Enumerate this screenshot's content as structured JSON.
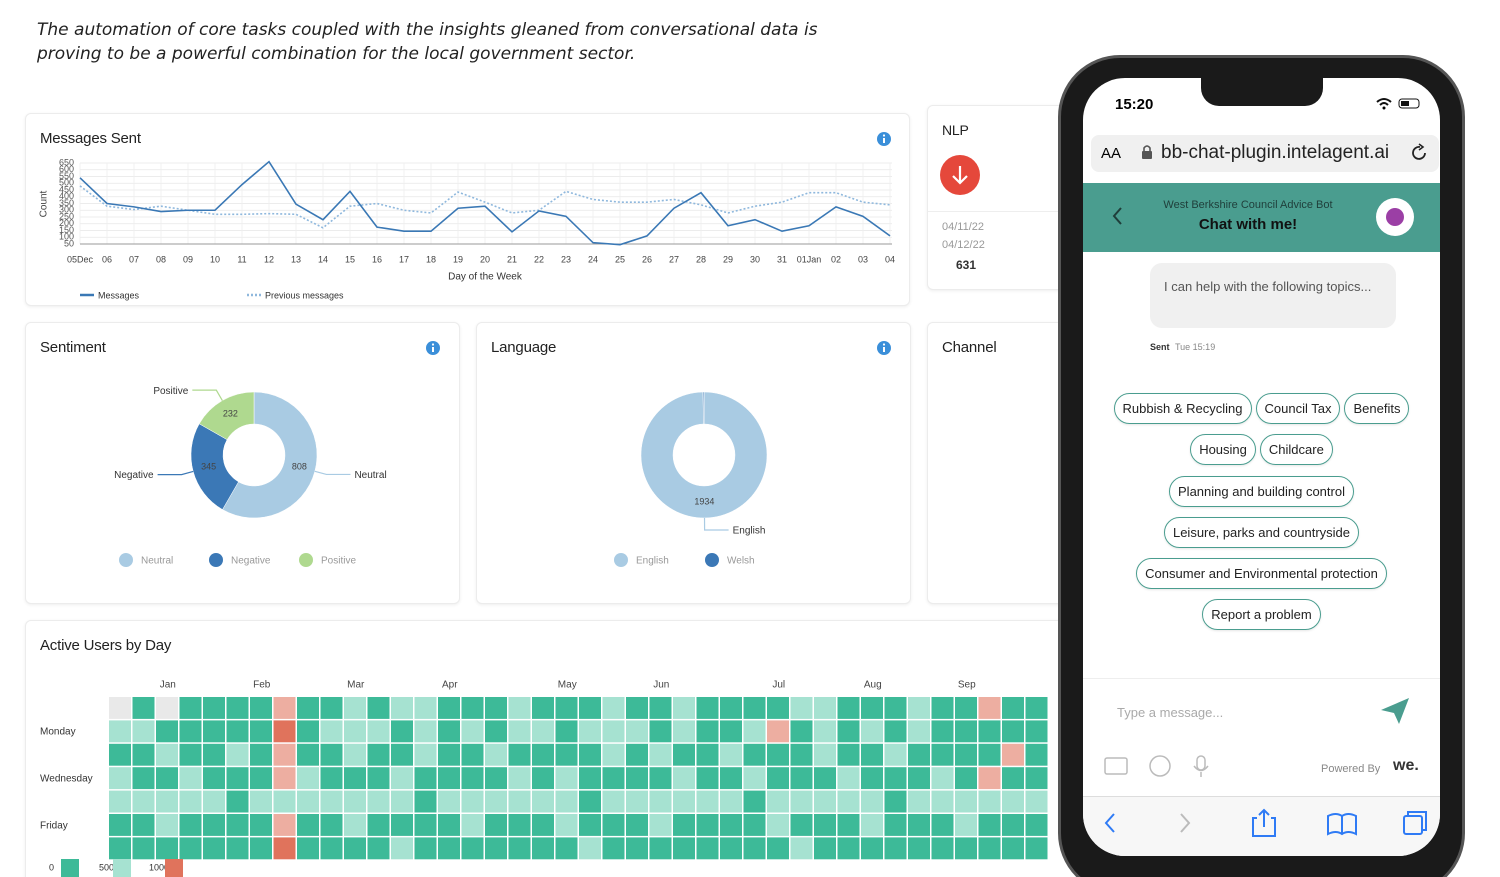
{
  "caption": "The automation of core tasks coupled with the insights gleaned from conversational data is proving to be a powerful combination for the local government sector.",
  "messages_chart": {
    "type": "line",
    "title": "Messages Sent",
    "ylabel": "Count",
    "xlabel": "Day of the Week",
    "categories": [
      "05Dec",
      "06",
      "07",
      "08",
      "09",
      "10",
      "11",
      "12",
      "13",
      "14",
      "15",
      "16",
      "17",
      "18",
      "19",
      "20",
      "21",
      "22",
      "23",
      "24",
      "25",
      "26",
      "27",
      "28",
      "29",
      "30",
      "31",
      "01Jan",
      "02",
      "03",
      "04"
    ],
    "series": [
      {
        "name": "Messages",
        "color": "#3a78b5",
        "style": "solid",
        "values": [
          540,
          350,
          325,
          290,
          300,
          300,
          490,
          660,
          345,
          230,
          440,
          175,
          145,
          145,
          315,
          330,
          140,
          295,
          255,
          60,
          45,
          110,
          315,
          430,
          185,
          230,
          145,
          185,
          325,
          255,
          110
        ]
      },
      {
        "name": "Previous messages",
        "color": "#8fb8dd",
        "style": "dotted",
        "values": [
          480,
          330,
          305,
          330,
          300,
          270,
          270,
          275,
          270,
          170,
          330,
          350,
          300,
          280,
          435,
          360,
          280,
          300,
          440,
          380,
          360,
          360,
          380,
          340,
          280,
          330,
          360,
          430,
          430,
          360,
          340
        ]
      }
    ],
    "ylim": [
      50,
      650
    ],
    "yticks": [
      50,
      100,
      150,
      200,
      250,
      300,
      350,
      400,
      450,
      500,
      550,
      600,
      650
    ],
    "grid": true
  },
  "nlp": {
    "title": "NLP",
    "dates": [
      "04/11/22",
      "04/12/22"
    ],
    "count": "631"
  },
  "sentiment": {
    "type": "donut",
    "title": "Sentiment",
    "categories": [
      "Neutral",
      "Negative",
      "Positive"
    ],
    "values": [
      808,
      345,
      232
    ],
    "colors": [
      "#a9cbe3",
      "#3b78b6",
      "#afd98f"
    ]
  },
  "language": {
    "type": "donut",
    "title": "Language",
    "categories": [
      "English",
      "Welsh"
    ],
    "values": [
      1934,
      5
    ],
    "colors": [
      "#a9cbe3",
      "#3b78b6"
    ]
  },
  "channel": {
    "title": "Channel"
  },
  "active_users": {
    "type": "heatmap",
    "title": "Active Users by Day",
    "columns": [
      null,
      null,
      "Jan",
      null,
      null,
      null,
      "Feb",
      null,
      null,
      null,
      "Mar",
      null,
      null,
      null,
      "Apr",
      null,
      null,
      null,
      null,
      "May",
      null,
      null,
      null,
      "Jun",
      null,
      null,
      null,
      null,
      "Jul",
      null,
      null,
      null,
      "Aug",
      null,
      null,
      null,
      "Sep",
      null,
      null,
      null
    ],
    "rows": [
      null,
      "Monday",
      null,
      "Wednesday",
      null,
      "Friday",
      null
    ],
    "values": [
      [
        null,
        300,
        null,
        300,
        300,
        300,
        300,
        1050,
        300,
        300,
        700,
        300,
        700,
        700,
        300,
        300,
        300,
        700,
        300,
        300,
        300,
        700,
        300,
        300,
        700,
        300,
        300,
        300,
        300,
        700,
        700,
        300,
        300,
        300,
        700,
        300,
        300,
        1050,
        300,
        300
      ],
      [
        700,
        700,
        300,
        300,
        300,
        300,
        300,
        1300,
        300,
        700,
        700,
        700,
        300,
        700,
        300,
        700,
        300,
        700,
        700,
        300,
        700,
        700,
        700,
        300,
        700,
        300,
        300,
        700,
        1050,
        300,
        700,
        300,
        700,
        300,
        700,
        300,
        300,
        300,
        300,
        300
      ],
      [
        300,
        300,
        700,
        300,
        300,
        700,
        300,
        1050,
        300,
        300,
        700,
        300,
        300,
        700,
        300,
        300,
        700,
        300,
        300,
        300,
        300,
        700,
        300,
        700,
        300,
        300,
        700,
        300,
        300,
        300,
        700,
        300,
        300,
        700,
        300,
        300,
        300,
        300,
        1050,
        300
      ],
      [
        700,
        300,
        300,
        700,
        300,
        300,
        300,
        1050,
        700,
        300,
        300,
        300,
        700,
        300,
        300,
        300,
        300,
        700,
        300,
        700,
        300,
        300,
        300,
        300,
        700,
        300,
        300,
        700,
        300,
        300,
        300,
        700,
        300,
        300,
        300,
        700,
        300,
        1050,
        300,
        300
      ],
      [
        700,
        700,
        700,
        700,
        700,
        300,
        700,
        700,
        700,
        700,
        700,
        700,
        700,
        300,
        700,
        700,
        700,
        700,
        700,
        700,
        300,
        700,
        700,
        700,
        700,
        700,
        700,
        300,
        700,
        700,
        700,
        700,
        700,
        300,
        700,
        700,
        700,
        700,
        700,
        700
      ],
      [
        300,
        300,
        700,
        300,
        300,
        300,
        300,
        1050,
        300,
        300,
        700,
        300,
        300,
        300,
        300,
        700,
        300,
        300,
        300,
        700,
        300,
        300,
        300,
        700,
        300,
        300,
        300,
        300,
        700,
        300,
        300,
        300,
        700,
        300,
        300,
        300,
        700,
        300,
        300,
        300
      ],
      [
        300,
        300,
        300,
        300,
        300,
        300,
        300,
        1300,
        300,
        300,
        300,
        300,
        700,
        300,
        300,
        300,
        300,
        300,
        300,
        300,
        700,
        300,
        300,
        300,
        300,
        300,
        300,
        300,
        300,
        700,
        300,
        300,
        300,
        300,
        300,
        300,
        300,
        300,
        300,
        300
      ]
    ],
    "legend": [
      {
        "value": 0,
        "color": "#3dba98"
      },
      {
        "value": 500,
        "color": "#a6e2d1"
      },
      {
        "value": 1000,
        "color": "#e0735c"
      }
    ],
    "null_color": "#e9e9e9"
  },
  "phone": {
    "time": "15:20",
    "text_size": "AA",
    "url": "bb-chat-plugin.intelagent.ai",
    "bot_name": "West Berkshire Council Advice Bot",
    "header": "Chat with me!",
    "message": "I can help with the following topics...",
    "sent": "Sent",
    "sent_time": "Tue 15:19",
    "topics": [
      [
        "Rubbish & Recycling",
        "Council Tax",
        "Benefits"
      ],
      [
        "Housing",
        "Childcare"
      ],
      [
        "Planning and building control"
      ],
      [
        "Leisure, parks and countryside"
      ],
      [
        "Consumer and Environmental protection"
      ],
      [
        "Report a problem"
      ]
    ],
    "placeholder": "Type a message...",
    "powered": "Powered By",
    "brand": "we."
  }
}
